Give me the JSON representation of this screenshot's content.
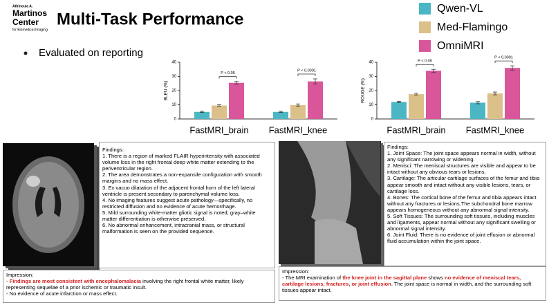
{
  "header": {
    "logo": [
      "Athinoula A.",
      "Martinos",
      "Center",
      "for Biomedical Imaging"
    ],
    "title": "Multi-Task Performance",
    "bullet": "Evaluated on reporting"
  },
  "chart_data": [
    {
      "type": "bar",
      "ylabel": "BLEU (%)",
      "categories": [
        "FastMRI_brain",
        "FastMRI_knee"
      ],
      "annotations": [
        "P < 0.05",
        "P < 0.0001"
      ],
      "ylim": [
        0,
        40
      ],
      "yticks": [
        0,
        10,
        20,
        30,
        40
      ],
      "series": [
        {
          "name": "Qwen-VL",
          "color": "#4bb7c4",
          "values": [
            5,
            5
          ],
          "errors": [
            0.4,
            0.4
          ]
        },
        {
          "name": "Med-Flamingo",
          "color": "#dcc08a",
          "values": [
            9.5,
            9.8
          ],
          "errors": [
            0.5,
            0.8
          ]
        },
        {
          "name": "OmniMRI",
          "color": "#d9569a",
          "values": [
            25.5,
            26.5
          ],
          "errors": [
            1,
            1.8
          ]
        }
      ]
    },
    {
      "type": "bar",
      "ylabel": "ROUGE (%)",
      "categories": [
        "FastMRI_brain",
        "FastMRI_knee"
      ],
      "annotations": [
        "P < 0.05",
        "P < 0.0001"
      ],
      "ylim": [
        0,
        40
      ],
      "yticks": [
        0,
        10,
        20,
        30,
        40
      ],
      "series": [
        {
          "name": "Qwen-VL",
          "color": "#4bb7c4",
          "values": [
            12,
            11.5
          ],
          "errors": [
            0.5,
            0.8
          ]
        },
        {
          "name": "Med-Flamingo",
          "color": "#dcc08a",
          "values": [
            17.5,
            18
          ],
          "errors": [
            0.6,
            1
          ]
        },
        {
          "name": "OmniMRI",
          "color": "#d9569a",
          "values": [
            34,
            36
          ],
          "errors": [
            1,
            1.5
          ]
        }
      ]
    }
  ],
  "reports": [
    {
      "findings": [
        "Findings:",
        "1. There is a region of marked FLAIR hyperintensity with associated volume loss in the right frontal deep white matter extending to the periventricular region.",
        "2. The area demonstrates a non-expansile configuration with smooth margins and no mass effect.",
        "3. Ex vacuo dilatation of the adjacent frontal horn of the left lateral ventricle is present secondary to parenchymal volume loss.",
        "4. No imaging features suggest acute pathology—specifically, no restricted diffusion and no evidence of acute hemorrhage.",
        "5. Mild surrounding white-matter gliotic signal is noted; gray–white matter differentiation is otherwise preserved.",
        "6. No abnormal enhancement, intracranial mass, or structural malformation is seen on the provided sequence."
      ],
      "impression_title": "Impression:",
      "impression": [
        [
          {
            "text": "- "
          },
          {
            "text": "Findings are most consistent with encephalomalacia",
            "highlight": true
          },
          {
            "text": " involving the right frontal white matter, likely representing sequelae of a prior ischemic or traumatic insult."
          }
        ],
        [
          {
            "text": "- No evidence of acute infarction or mass effect."
          }
        ]
      ]
    },
    {
      "findings": [
        "Findings:",
        "1. Joint Space: The joint space appears normal in width, without any significant narrowing or widening.",
        "2. Menisci: The meniscal structures are visible and appear to be intact without any obvious tears or lesions.",
        "3. Cartilage: The articular cartilage surfaces of the femur and tibia appear smooth and intact without any visible lesions, tears, or cartilage loss.",
        "4. Bones: The cortical bone of the femur and tibia appears intact without any fractures or lesions.The subchondral bone marrow appears homogeneous without any abnormal signal intensity.",
        "5. Soft Tissues: The surrounding soft tissues, including muscles and ligaments, appear normal without any significant swelling or abnormal signal intensity.",
        "6. Joint Fluid: There is no evidence of joint effusion or abnormal fluid accumulation within the joint space."
      ],
      "impression_title": "Impression:",
      "impression": [
        [
          {
            "text": "- The MRI examination of "
          },
          {
            "text": "the knee joint in the sagittal plane",
            "highlight": true
          },
          {
            "text": " shows "
          },
          {
            "text": "no evidence of meniscal tears, cartilage lesions, fractures, or joint effusion",
            "highlight": true
          },
          {
            "text": ". The joint space is normal in width, and the surrounding soft tissues appear intact."
          }
        ]
      ]
    }
  ]
}
